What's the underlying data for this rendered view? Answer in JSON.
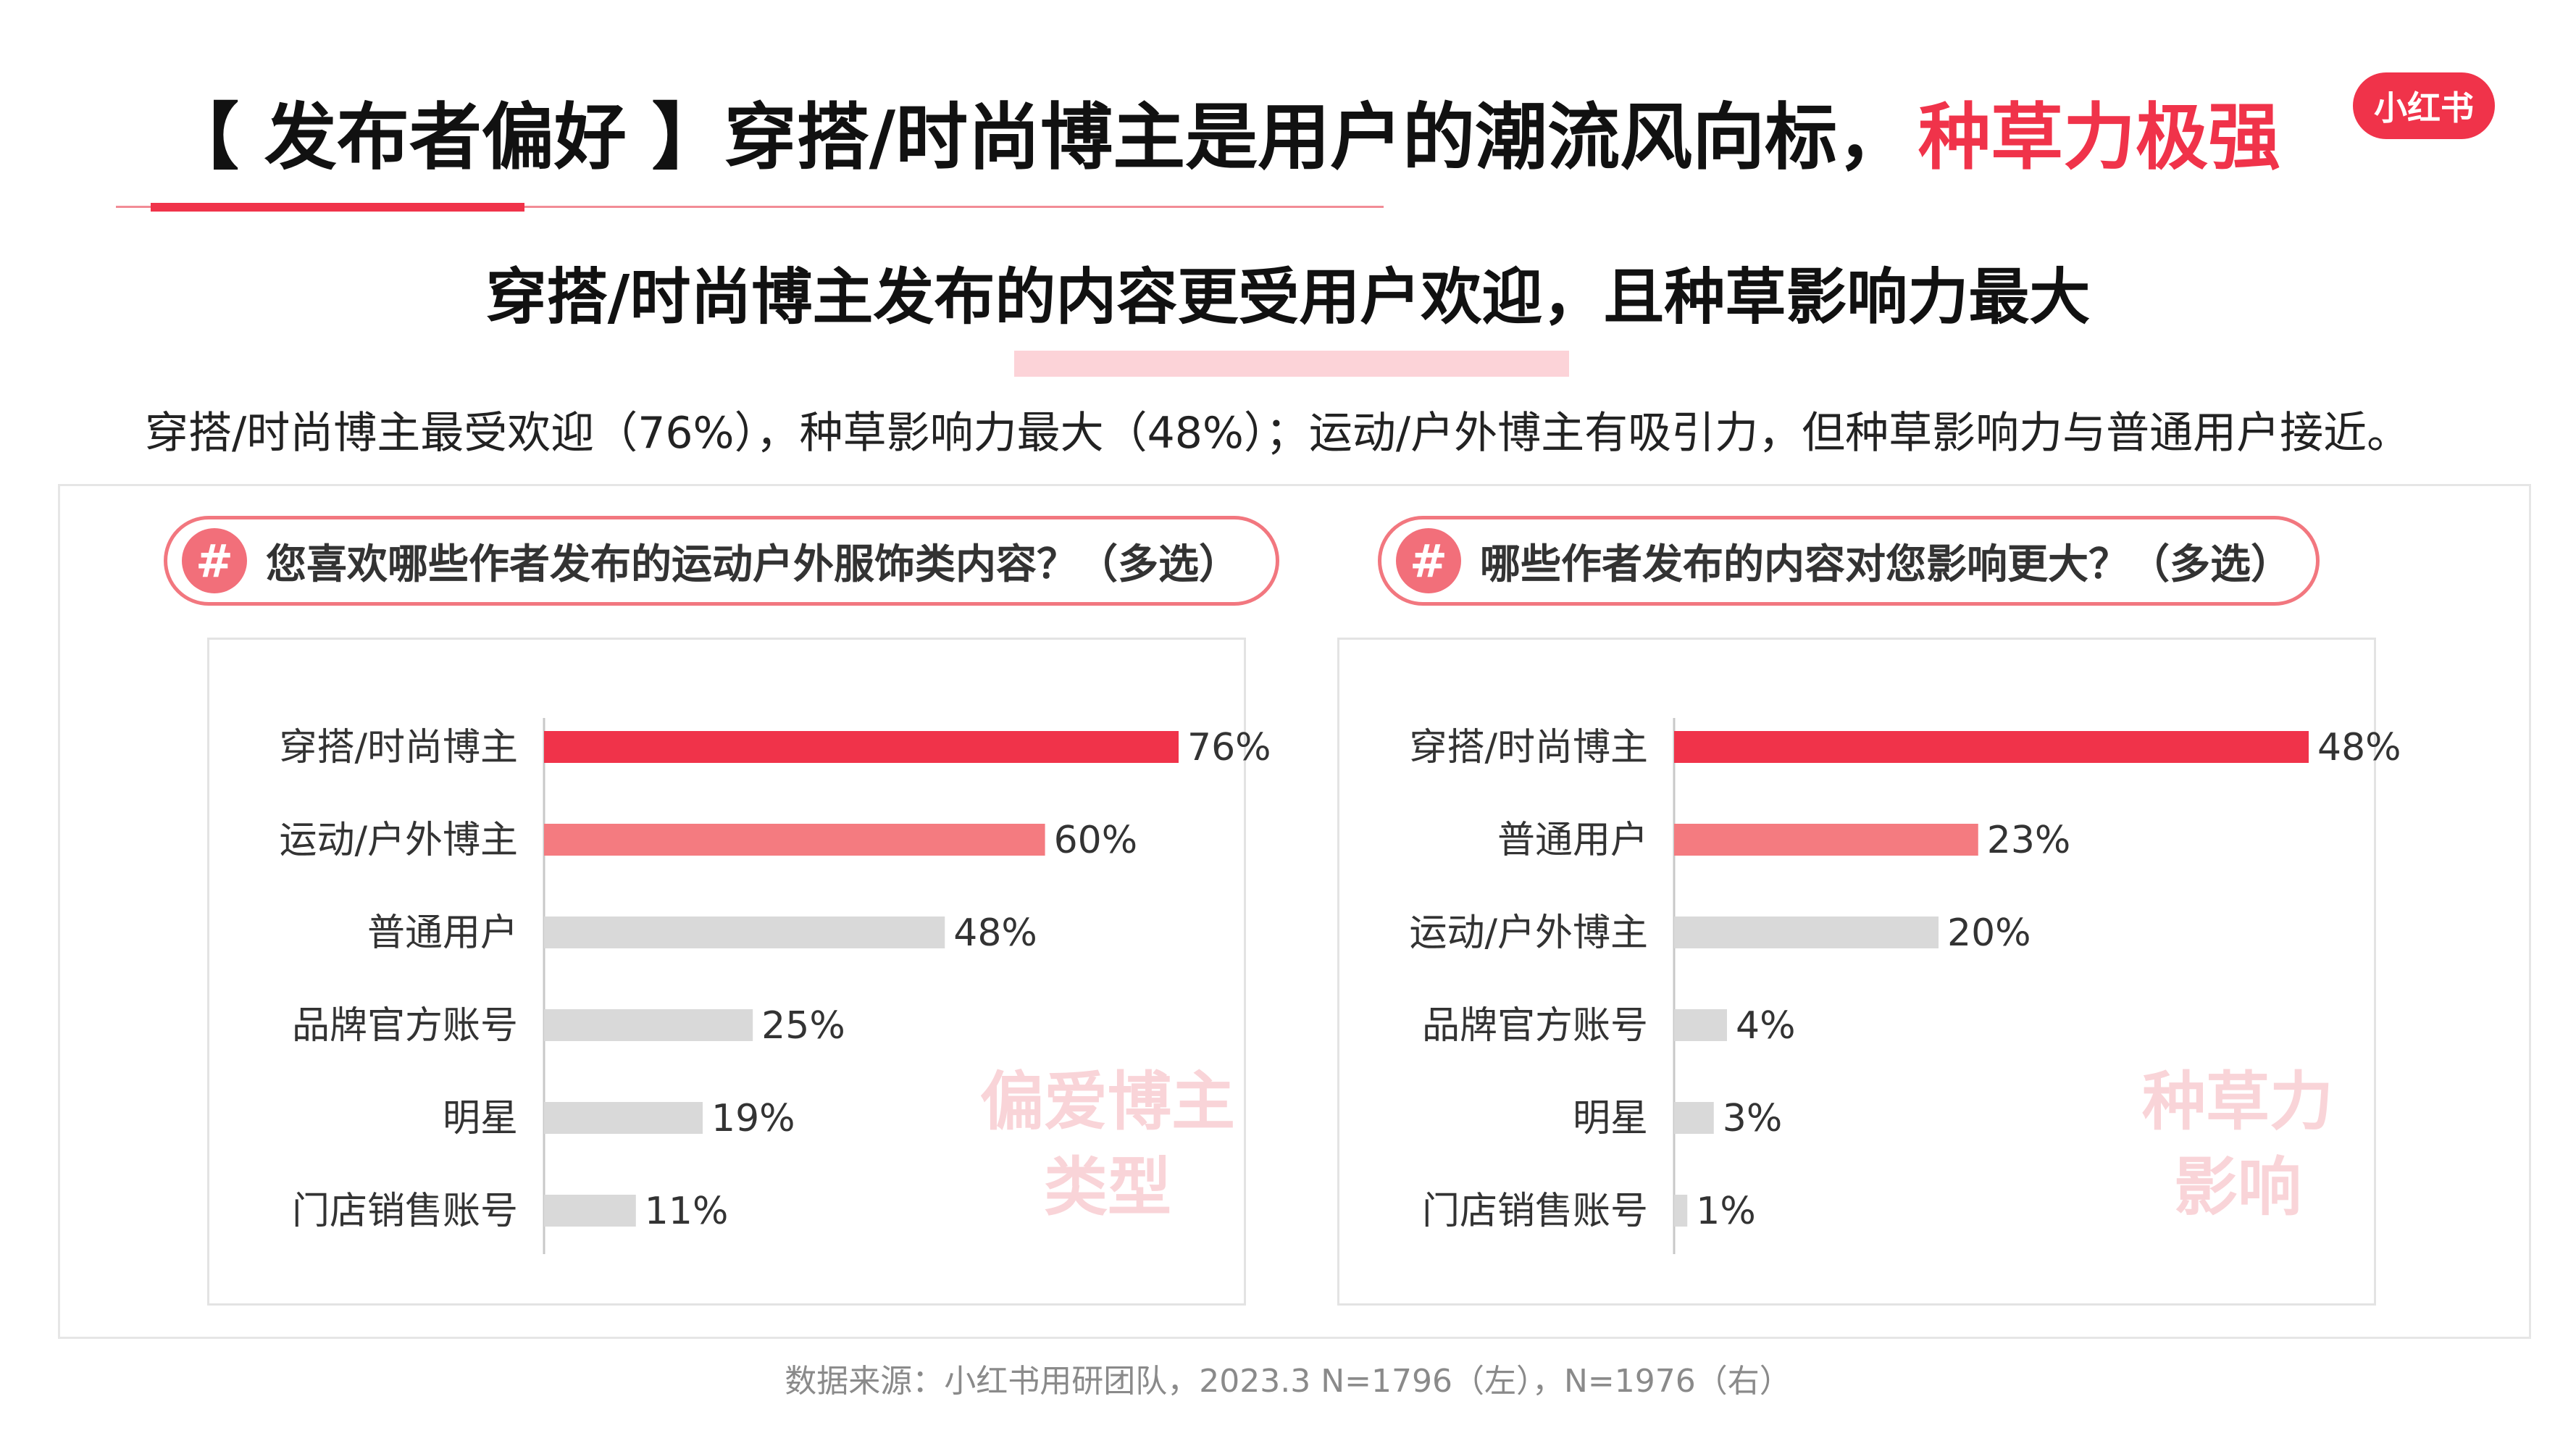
{
  "header": {
    "title_main": "【 发布者偏好 】穿搭/时尚博主是用户的潮流风向标，",
    "title_accent": "种草力极强",
    "logo_text": "小红书",
    "subtitle": "穿搭/时尚博主发布的内容更受用户欢迎，且种草影响力最大",
    "summary": "穿搭/时尚博主最受欢迎（76%），种草影响力最大（48%）；运动/户外博主有吸引力，但种草影响力与普通用户接近。"
  },
  "panels": [
    {
      "question_icon": "#",
      "question": "您喜欢哪些作者发布的运动户外服饰类内容？（多选）"
    },
    {
      "question_icon": "#",
      "question": "哪些作者发布的内容对您影响更大？（多选）"
    }
  ],
  "colors": {
    "accent": "#f0334a",
    "secondary": "#f47b80",
    "neutral": "#d9d9d9",
    "watermark": "#f9d4d8"
  },
  "chart_data": [
    {
      "type": "bar",
      "orientation": "horizontal",
      "categories": [
        "穿搭/时尚博主",
        "运动/户外博主",
        "普通用户",
        "品牌官方账号",
        "明星",
        "门店销售账号"
      ],
      "values": [
        76,
        60,
        48,
        25,
        19,
        11
      ],
      "value_labels": [
        "76%",
        "60%",
        "48%",
        "25%",
        "19%",
        "11%"
      ],
      "unit": "%",
      "xlim": [
        0,
        76
      ],
      "bar_colors": [
        "#f0334a",
        "#f47b80",
        "#d9d9d9",
        "#d9d9d9",
        "#d9d9d9",
        "#d9d9d9"
      ],
      "watermark": [
        "偏爱博主",
        "类型"
      ],
      "grid": false
    },
    {
      "type": "bar",
      "orientation": "horizontal",
      "categories": [
        "穿搭/时尚博主",
        "普通用户",
        "运动/户外博主",
        "品牌官方账号",
        "明星",
        "门店销售账号"
      ],
      "values": [
        48,
        23,
        20,
        4,
        3,
        1
      ],
      "value_labels": [
        "48%",
        "23%",
        "20%",
        "4%",
        "3%",
        "1%"
      ],
      "unit": "%",
      "xlim": [
        0,
        48
      ],
      "bar_colors": [
        "#f0334a",
        "#f47b80",
        "#d9d9d9",
        "#d9d9d9",
        "#d9d9d9",
        "#d9d9d9"
      ],
      "watermark": [
        "种草力",
        "影响"
      ],
      "grid": false
    }
  ],
  "footer": {
    "source": "数据来源：小红书用研团队，2023.3 N=1796（左），N=1976（右）"
  }
}
